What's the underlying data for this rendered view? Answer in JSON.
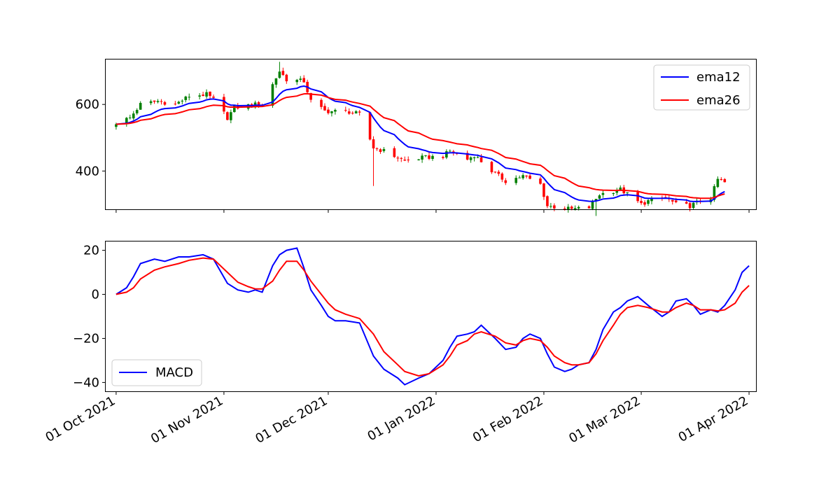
{
  "chart_data": [
    {
      "type": "candlestick",
      "x_start": "2021-10-01",
      "x_end": "2022-03-25",
      "xlim": [
        "2021-09-28",
        "2022-04-03"
      ],
      "ylim": [
        285,
        735
      ],
      "yticks": [
        400,
        600
      ],
      "ytick_labels": [
        "400",
        "600"
      ],
      "colors": {
        "up": "#008000",
        "down": "#ff0000",
        "ema12": "#0000ff",
        "ema26": "#ff0000"
      },
      "legend": {
        "placement": "top-right",
        "entries": [
          {
            "label": "ema12",
            "color": "#0000ff"
          },
          {
            "label": "ema26",
            "color": "#ff0000"
          }
        ]
      },
      "close_anchors": [
        [
          "2021-10-01",
          545
        ],
        [
          "2021-10-05",
          560
        ],
        [
          "2021-10-08",
          600
        ],
        [
          "2021-10-13",
          610
        ],
        [
          "2021-10-18",
          600
        ],
        [
          "2021-10-22",
          625
        ],
        [
          "2021-10-27",
          630
        ],
        [
          "2021-10-29",
          615
        ],
        [
          "2021-11-02",
          560
        ],
        [
          "2021-11-04",
          590
        ],
        [
          "2021-11-10",
          600
        ],
        [
          "2021-11-12",
          600
        ],
        [
          "2021-11-15",
          660
        ],
        [
          "2021-11-17",
          700
        ],
        [
          "2021-11-19",
          675
        ],
        [
          "2021-11-24",
          670
        ],
        [
          "2021-11-26",
          610
        ],
        [
          "2021-11-30",
          580
        ],
        [
          "2021-12-07",
          578
        ],
        [
          "2021-12-10",
          570
        ],
        [
          "2021-12-14",
          470
        ],
        [
          "2021-12-17",
          460
        ],
        [
          "2021-12-23",
          430
        ],
        [
          "2021-12-28",
          440
        ],
        [
          "2022-01-03",
          445
        ],
        [
          "2022-01-05",
          460
        ],
        [
          "2022-01-10",
          435
        ],
        [
          "2022-01-12",
          448
        ],
        [
          "2022-01-17",
          400
        ],
        [
          "2022-01-21",
          370
        ],
        [
          "2022-01-26",
          385
        ],
        [
          "2022-01-31",
          360
        ],
        [
          "2022-02-02",
          295
        ],
        [
          "2022-02-09",
          285
        ],
        [
          "2022-02-14",
          290
        ],
        [
          "2022-02-17",
          330
        ],
        [
          "2022-02-23",
          345
        ],
        [
          "2022-03-01",
          300
        ],
        [
          "2022-03-03",
          310
        ],
        [
          "2022-03-08",
          320
        ],
        [
          "2022-03-11",
          300
        ],
        [
          "2022-03-15",
          295
        ],
        [
          "2022-03-18",
          310
        ],
        [
          "2022-03-21",
          320
        ],
        [
          "2022-03-23",
          375
        ],
        [
          "2022-03-25",
          365
        ]
      ],
      "series": [
        {
          "name": "ema12",
          "ema_span": 12,
          "color": "#0000ff"
        },
        {
          "name": "ema26",
          "ema_span": 26,
          "color": "#ff0000"
        }
      ]
    },
    {
      "type": "line",
      "xlim": [
        "2021-09-28",
        "2022-04-03"
      ],
      "ylim": [
        -44,
        24
      ],
      "yticks": [
        -40,
        -20,
        0,
        20
      ],
      "ytick_labels": [
        "−40",
        "−20",
        "0",
        "20"
      ],
      "xticks": [
        "2021-10-01",
        "2021-11-01",
        "2021-12-01",
        "2022-01-01",
        "2022-02-01",
        "2022-03-01",
        "2022-04-01"
      ],
      "xtick_labels": [
        "01 Oct 2021",
        "01 Nov 2021",
        "01 Dec 2021",
        "01 Jan 2022",
        "01 Feb 2022",
        "01 Mar 2022",
        "01 Apr 2022"
      ],
      "legend": {
        "placement": "bottom-left",
        "entries": [
          {
            "label": "MACD",
            "color": "#0000ff"
          }
        ]
      },
      "series": [
        {
          "name": "MACD",
          "color": "#0000ff",
          "points": [
            [
              "2021-10-01",
              0
            ],
            [
              "2021-10-04",
              3
            ],
            [
              "2021-10-06",
              8
            ],
            [
              "2021-10-08",
              14
            ],
            [
              "2021-10-12",
              16
            ],
            [
              "2021-10-15",
              15
            ],
            [
              "2021-10-19",
              17
            ],
            [
              "2021-10-22",
              17
            ],
            [
              "2021-10-26",
              18
            ],
            [
              "2021-10-29",
              16
            ],
            [
              "2021-11-02",
              5
            ],
            [
              "2021-11-05",
              2
            ],
            [
              "2021-11-08",
              1
            ],
            [
              "2021-11-10",
              2
            ],
            [
              "2021-11-12",
              1
            ],
            [
              "2021-11-15",
              13
            ],
            [
              "2021-11-17",
              18
            ],
            [
              "2021-11-19",
              20
            ],
            [
              "2021-11-22",
              21
            ],
            [
              "2021-11-24",
              12
            ],
            [
              "2021-11-26",
              2
            ],
            [
              "2021-11-29",
              -5
            ],
            [
              "2021-12-01",
              -10
            ],
            [
              "2021-12-03",
              -12
            ],
            [
              "2021-12-06",
              -12
            ],
            [
              "2021-12-10",
              -13
            ],
            [
              "2021-12-14",
              -28
            ],
            [
              "2021-12-17",
              -34
            ],
            [
              "2021-12-21",
              -38
            ],
            [
              "2021-12-23",
              -41
            ],
            [
              "2021-12-27",
              -38
            ],
            [
              "2021-12-30",
              -36
            ],
            [
              "2022-01-03",
              -30
            ],
            [
              "2022-01-05",
              -24
            ],
            [
              "2022-01-07",
              -19
            ],
            [
              "2022-01-10",
              -18
            ],
            [
              "2022-01-12",
              -17
            ],
            [
              "2022-01-14",
              -14
            ],
            [
              "2022-01-18",
              -20
            ],
            [
              "2022-01-21",
              -25
            ],
            [
              "2022-01-24",
              -24
            ],
            [
              "2022-01-26",
              -20
            ],
            [
              "2022-01-28",
              -18
            ],
            [
              "2022-01-31",
              -20
            ],
            [
              "2022-02-02",
              -27
            ],
            [
              "2022-02-04",
              -33
            ],
            [
              "2022-02-07",
              -35
            ],
            [
              "2022-02-09",
              -34
            ],
            [
              "2022-02-11",
              -32
            ],
            [
              "2022-02-14",
              -31
            ],
            [
              "2022-02-16",
              -25
            ],
            [
              "2022-02-18",
              -16
            ],
            [
              "2022-02-21",
              -8
            ],
            [
              "2022-02-23",
              -6
            ],
            [
              "2022-02-25",
              -3
            ],
            [
              "2022-02-28",
              -1
            ],
            [
              "2022-03-03",
              -5
            ],
            [
              "2022-03-07",
              -10
            ],
            [
              "2022-03-09",
              -8
            ],
            [
              "2022-03-11",
              -3
            ],
            [
              "2022-03-14",
              -2
            ],
            [
              "2022-03-16",
              -5
            ],
            [
              "2022-03-18",
              -9
            ],
            [
              "2022-03-21",
              -7
            ],
            [
              "2022-03-23",
              -8
            ],
            [
              "2022-03-25",
              -5
            ],
            [
              "2022-03-28",
              2
            ],
            [
              "2022-03-30",
              10
            ],
            [
              "2022-04-01",
              13
            ]
          ]
        },
        {
          "name": "",
          "color": "#ff0000",
          "points": [
            [
              "2021-10-01",
              0
            ],
            [
              "2021-10-04",
              1
            ],
            [
              "2021-10-06",
              3
            ],
            [
              "2021-10-08",
              7
            ],
            [
              "2021-10-12",
              11
            ],
            [
              "2021-10-15",
              12.5
            ],
            [
              "2021-10-19",
              14
            ],
            [
              "2021-10-22",
              15.5
            ],
            [
              "2021-10-26",
              16.5
            ],
            [
              "2021-10-29",
              16
            ],
            [
              "2021-11-02",
              10
            ],
            [
              "2021-11-05",
              5.5
            ],
            [
              "2021-11-08",
              3.5
            ],
            [
              "2021-11-10",
              2.5
            ],
            [
              "2021-11-12",
              2.5
            ],
            [
              "2021-11-15",
              6
            ],
            [
              "2021-11-17",
              11
            ],
            [
              "2021-11-19",
              15
            ],
            [
              "2021-11-22",
              15
            ],
            [
              "2021-11-24",
              11
            ],
            [
              "2021-11-26",
              6
            ],
            [
              "2021-11-29",
              0
            ],
            [
              "2021-12-01",
              -4
            ],
            [
              "2021-12-03",
              -7
            ],
            [
              "2021-12-06",
              -9
            ],
            [
              "2021-12-10",
              -11
            ],
            [
              "2021-12-14",
              -18
            ],
            [
              "2021-12-17",
              -26
            ],
            [
              "2021-12-21",
              -32
            ],
            [
              "2021-12-23",
              -35
            ],
            [
              "2021-12-27",
              -37
            ],
            [
              "2021-12-30",
              -36
            ],
            [
              "2022-01-03",
              -32
            ],
            [
              "2022-01-05",
              -28
            ],
            [
              "2022-01-07",
              -23
            ],
            [
              "2022-01-10",
              -21
            ],
            [
              "2022-01-12",
              -18
            ],
            [
              "2022-01-14",
              -17
            ],
            [
              "2022-01-18",
              -19
            ],
            [
              "2022-01-21",
              -22
            ],
            [
              "2022-01-24",
              -23
            ],
            [
              "2022-01-26",
              -21
            ],
            [
              "2022-01-28",
              -20
            ],
            [
              "2022-01-31",
              -21
            ],
            [
              "2022-02-02",
              -24
            ],
            [
              "2022-02-04",
              -28
            ],
            [
              "2022-02-07",
              -31
            ],
            [
              "2022-02-09",
              -32
            ],
            [
              "2022-02-11",
              -32
            ],
            [
              "2022-02-14",
              -31
            ],
            [
              "2022-02-16",
              -27
            ],
            [
              "2022-02-18",
              -21
            ],
            [
              "2022-02-21",
              -14
            ],
            [
              "2022-02-23",
              -9
            ],
            [
              "2022-02-25",
              -6
            ],
            [
              "2022-02-28",
              -5
            ],
            [
              "2022-03-03",
              -6
            ],
            [
              "2022-03-07",
              -8
            ],
            [
              "2022-03-09",
              -8
            ],
            [
              "2022-03-11",
              -6
            ],
            [
              "2022-03-14",
              -4
            ],
            [
              "2022-03-16",
              -5
            ],
            [
              "2022-03-18",
              -7
            ],
            [
              "2022-03-21",
              -7
            ],
            [
              "2022-03-23",
              -7.5
            ],
            [
              "2022-03-25",
              -7
            ],
            [
              "2022-03-28",
              -4
            ],
            [
              "2022-03-30",
              1
            ],
            [
              "2022-04-01",
              4
            ]
          ]
        }
      ]
    }
  ]
}
